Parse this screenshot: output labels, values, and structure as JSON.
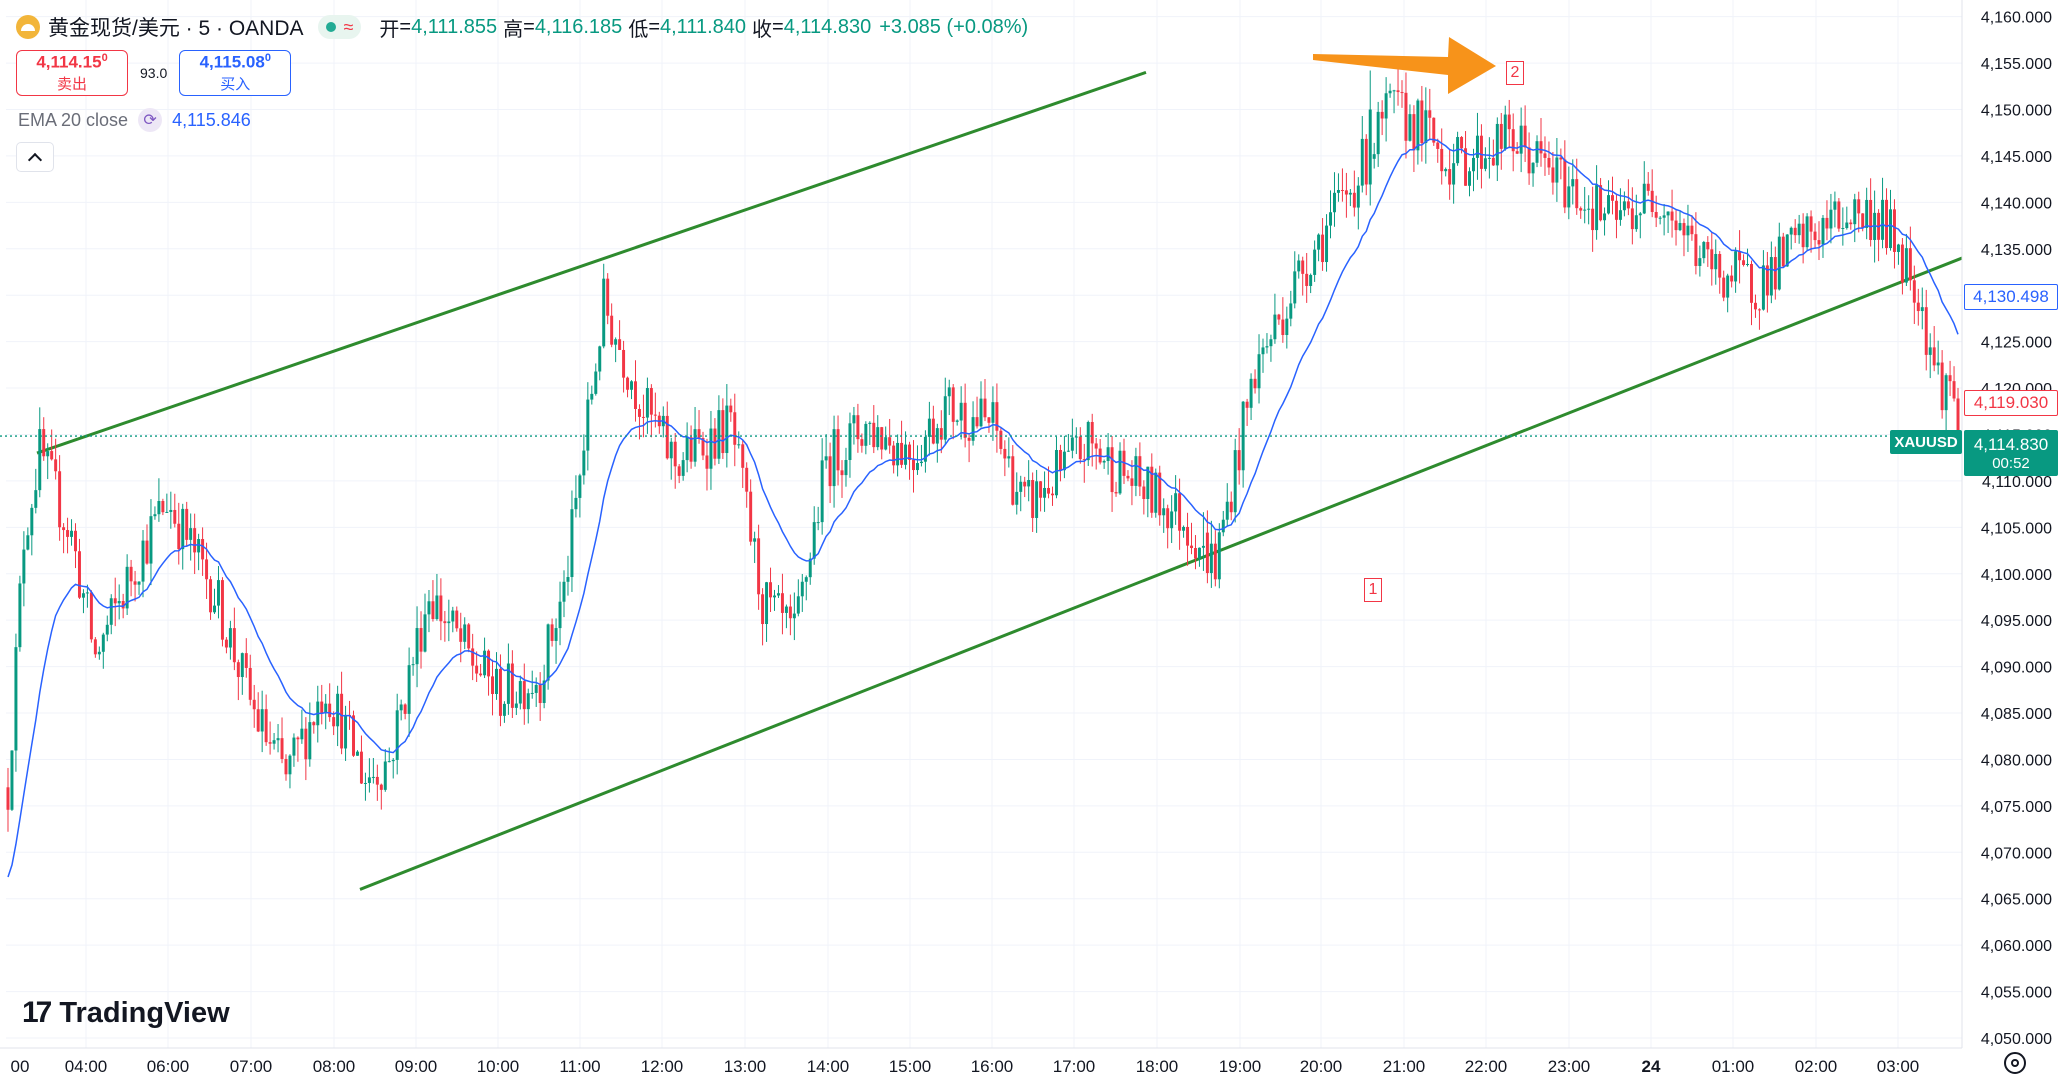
{
  "header": {
    "symbol_title": "黄金现货/美元 · 5 · OANDA",
    "status_icon": "wave-icon",
    "wave_glyph": "≈",
    "ohlc": {
      "open_label": "开",
      "open_value": "4,111.855",
      "high_label": "高",
      "high_value": "4,116.185",
      "low_label": "低",
      "low_value": "4,111.840",
      "close_label": "收",
      "close_value": "4,114.830",
      "change": "+3.085 (+0.08%)"
    }
  },
  "trade": {
    "sell_price": "4,114.15",
    "sell_price_sup": "0",
    "sell_label": "卖出",
    "spread": "93.0",
    "buy_price": "4,115.08",
    "buy_price_sup": "0",
    "buy_label": "买入"
  },
  "indicator": {
    "name": "EMA 20 close",
    "value": "4,115.846"
  },
  "axis_labels": {
    "ema_tag": "4,130.498",
    "close_tag": "4,119.030",
    "symbol_tag": "XAUUSD",
    "price_tag": "4,114.830",
    "countdown": "00:52"
  },
  "markers": {
    "one": "1",
    "two": "2"
  },
  "logo": {
    "mark": "17",
    "text": "TradingView"
  },
  "colors": {
    "up": "#089981",
    "down": "#f23645",
    "ema": "#2962ff",
    "channel": "#2e8b2e",
    "arrow": "#f7931a",
    "grid": "#f0f3fa"
  },
  "chart_data": {
    "type": "candlestick",
    "symbol": "XAUUSD",
    "interval": "5m",
    "ylim": [
      4050,
      4160
    ],
    "y_ticks": [
      "4,050.000",
      "4,055.000",
      "4,060.000",
      "4,065.000",
      "4,070.000",
      "4,075.000",
      "4,080.000",
      "4,085.000",
      "4,090.000",
      "4,095.000",
      "4,100.000",
      "4,105.000",
      "4,110.000",
      "4,115.000",
      "4,120.000",
      "4,125.000",
      "4,130.000",
      "4,135.000",
      "4,140.000",
      "4,145.000",
      "4,150.000",
      "4,155.000",
      "4,160.000"
    ],
    "x_ticks": [
      "00",
      "04:00",
      "06:00",
      "07:00",
      "08:00",
      "09:00",
      "10:00",
      "11:00",
      "12:00",
      "13:00",
      "14:00",
      "15:00",
      "16:00",
      "17:00",
      "18:00",
      "19:00",
      "20:00",
      "21:00",
      "22:00",
      "23:00",
      "24",
      "01:00",
      "02:00",
      "03:00"
    ],
    "price_anchors": [
      [
        0,
        4077
      ],
      [
        4,
        4104
      ],
      [
        8,
        4113
      ],
      [
        16,
        4104
      ],
      [
        22,
        4091
      ],
      [
        32,
        4101
      ],
      [
        40,
        4108
      ],
      [
        52,
        4098
      ],
      [
        62,
        4085
      ],
      [
        70,
        4078
      ],
      [
        80,
        4088
      ],
      [
        90,
        4078
      ],
      [
        96,
        4080
      ],
      [
        106,
        4098
      ],
      [
        116,
        4091
      ],
      [
        124,
        4087
      ],
      [
        134,
        4089
      ],
      [
        140,
        4098
      ],
      [
        150,
        4129
      ],
      [
        160,
        4118
      ],
      [
        168,
        4112
      ],
      [
        182,
        4116
      ],
      [
        190,
        4097
      ],
      [
        198,
        4093
      ],
      [
        206,
        4112
      ],
      [
        216,
        4116
      ],
      [
        228,
        4113
      ],
      [
        236,
        4118
      ],
      [
        248,
        4116
      ],
      [
        256,
        4107
      ],
      [
        272,
        4114
      ],
      [
        280,
        4111
      ],
      [
        296,
        4106
      ],
      [
        304,
        4101
      ],
      [
        314,
        4122
      ],
      [
        326,
        4133
      ],
      [
        340,
        4143
      ],
      [
        348,
        4150
      ],
      [
        356,
        4148
      ],
      [
        364,
        4144
      ],
      [
        378,
        4147
      ],
      [
        392,
        4142
      ],
      [
        404,
        4138
      ],
      [
        416,
        4141
      ],
      [
        428,
        4133
      ],
      [
        440,
        4131
      ],
      [
        452,
        4136
      ],
      [
        464,
        4139
      ],
      [
        472,
        4138
      ],
      [
        480,
        4132
      ],
      [
        486,
        4121
      ],
      [
        491,
        4119.03
      ]
    ],
    "ema": {
      "period": 20,
      "source": "close",
      "last_value": 4115.846
    },
    "current_close": 4114.83,
    "channel": {
      "upper": [
        [
          37,
          4113
        ],
        [
          1146,
          4154
        ]
      ],
      "lower": [
        [
          360,
          4066
        ],
        [
          1962,
          4134
        ]
      ]
    },
    "annotations": [
      {
        "label": "1",
        "candle_index": 301,
        "type": "swing-low"
      },
      {
        "label": "2",
        "candle_index": 343,
        "type": "swing-high"
      }
    ]
  }
}
